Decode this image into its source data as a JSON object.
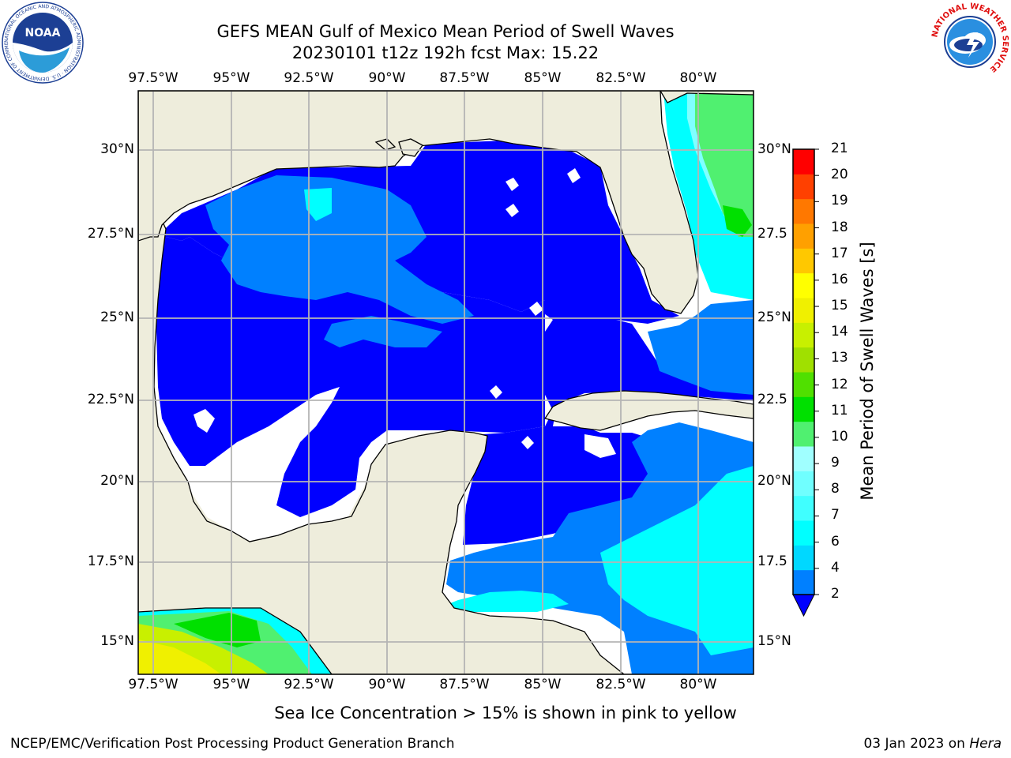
{
  "header": {
    "title_line1": "GEFS MEAN Gulf of Mexico Mean Period of Swell Waves",
    "title_line2": "20230101 t12z 192h fcst   Max: 15.22"
  },
  "logos": {
    "left": {
      "text": "NOAA",
      "ring_text": "NATIONAL OCEANIC AND ATMOSPHERIC ADMINISTRATION · U.S. DEPARTMENT OF COMMERCE"
    },
    "right": {
      "ring_text": "NATIONAL WEATHER SERVICE"
    }
  },
  "map": {
    "lon_labels": [
      "97.5°W",
      "95°W",
      "92.5°W",
      "90°W",
      "87.5°W",
      "85°W",
      "82.5°W",
      "80°W"
    ],
    "lat_labels_left": [
      "30°N",
      "27.5°N",
      "25°N",
      "22.5°N",
      "20°N",
      "17.5°N",
      "15°N"
    ],
    "lat_labels_right": [
      "30°N",
      "27.5",
      "25°N",
      "22.5",
      "20°N",
      "17.5",
      "15°N"
    ],
    "colors": {
      "land": "#eeeddc",
      "grid": "#b4b4b4",
      "deep_blue": "#0000ff",
      "mid_blue": "#0080ff",
      "cyan": "#00ffff",
      "light_cyan": "#80ffff",
      "green": "#50f050",
      "bright_green": "#00e000",
      "yellow": "#f0f000"
    }
  },
  "colorbar": {
    "label": "Mean Period of Swell Waves [s]",
    "ticks": [
      "2",
      "4",
      "6",
      "7",
      "8",
      "9",
      "10",
      "11",
      "12",
      "13",
      "14",
      "15",
      "16",
      "17",
      "18",
      "19",
      "20",
      "21"
    ],
    "colors": [
      "#0080ff",
      "#00d8ff",
      "#00ffff",
      "#40ffff",
      "#70ffff",
      "#a0ffff",
      "#50f070",
      "#00e000",
      "#50e000",
      "#a0e000",
      "#c8f000",
      "#f0f000",
      "#ffff00",
      "#ffc800",
      "#ffa000",
      "#ff7800",
      "#ff4000",
      "#ff0000"
    ],
    "extend_color": "#0000ff"
  },
  "caption": "Sea Ice Concentration > 15% is shown in pink to yellow",
  "footer": {
    "left": "NCEP/EMC/Verification Post Processing Product Generation Branch",
    "date": "03 Jan 2023 on",
    "host": "Hera"
  }
}
